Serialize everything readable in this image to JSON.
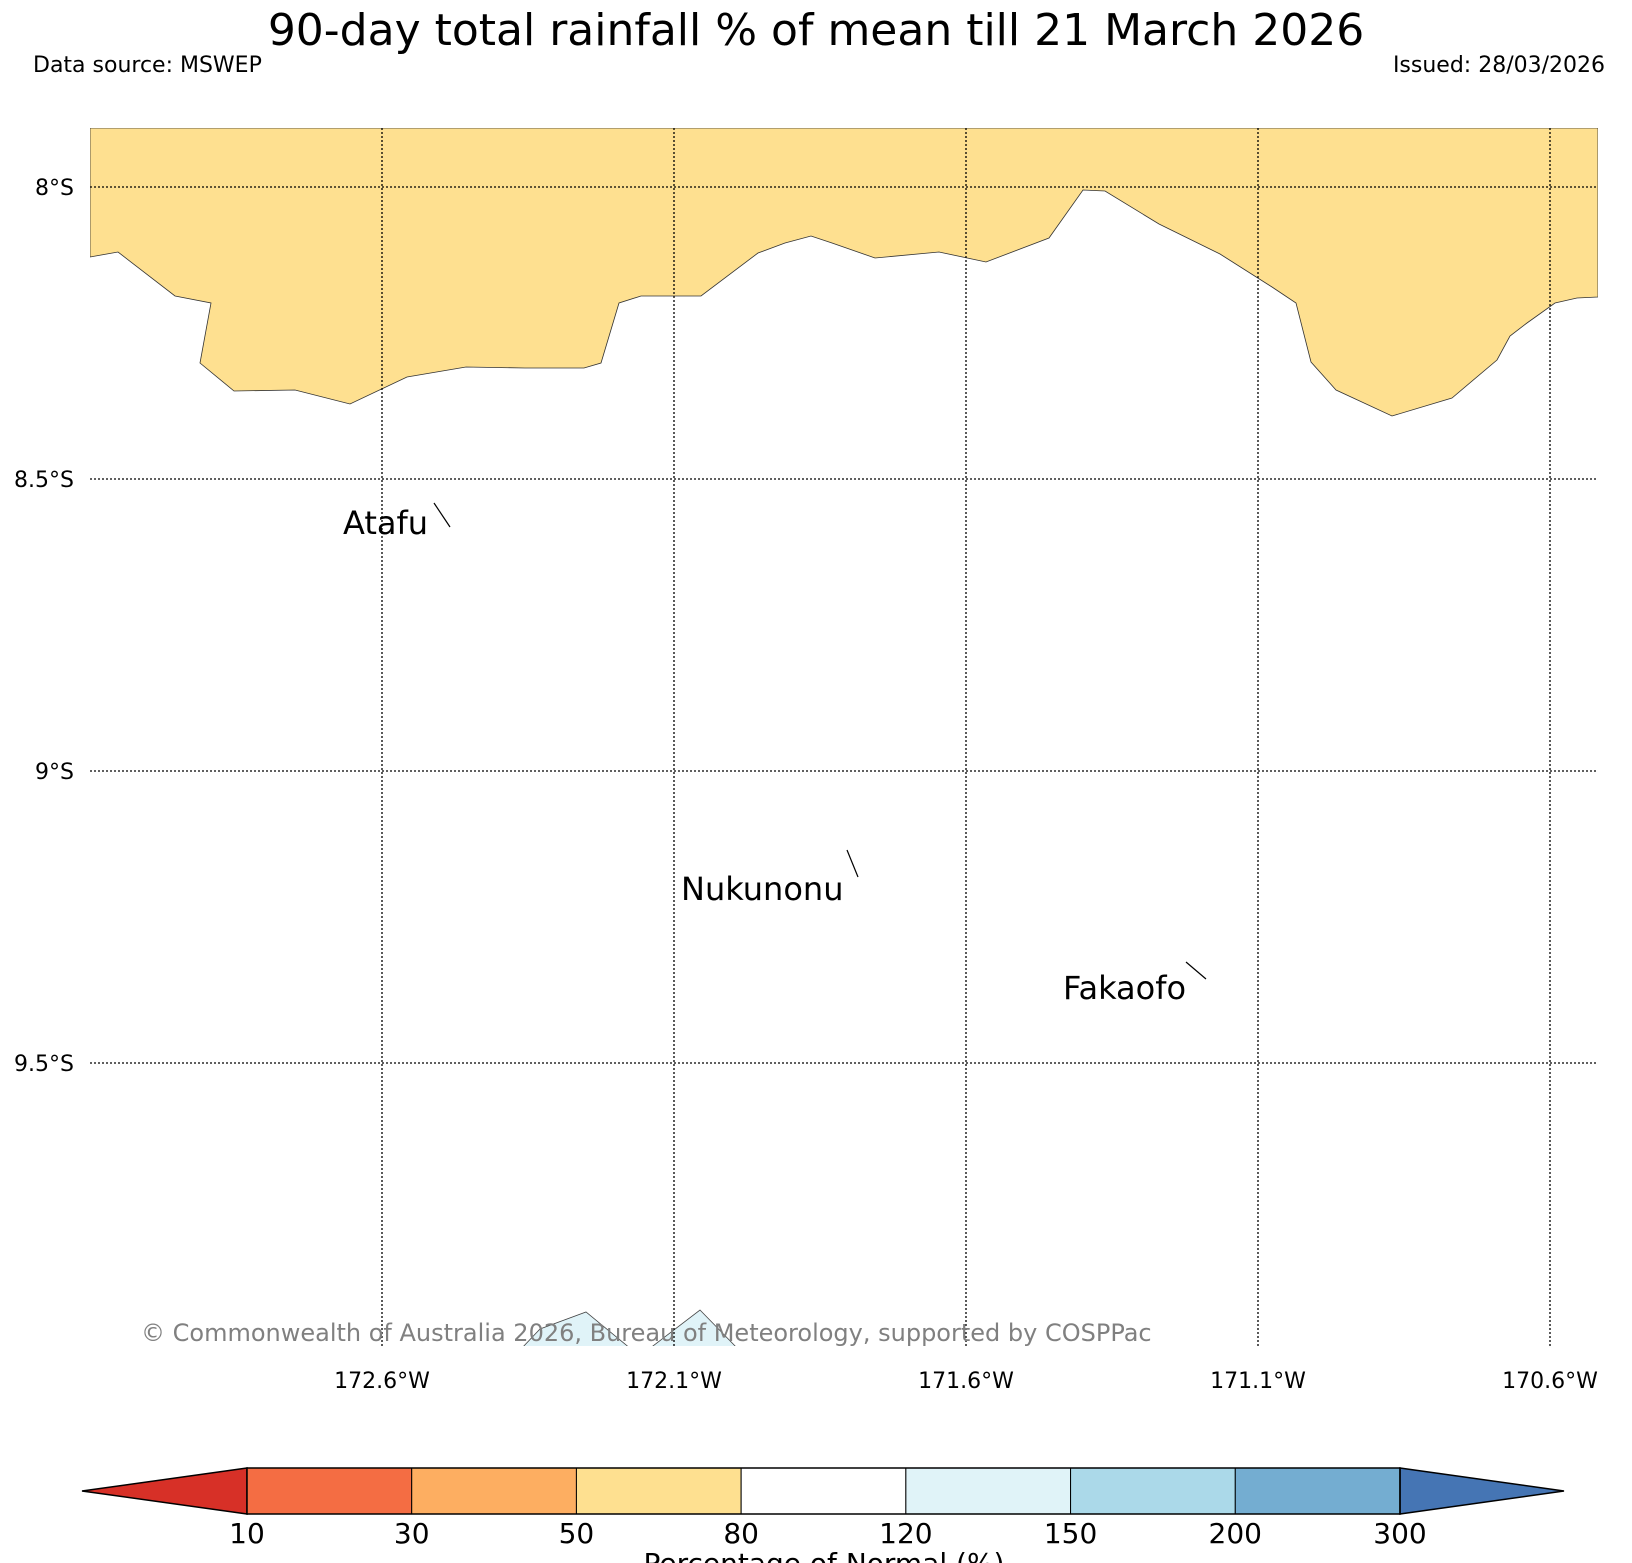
{
  "title": "90-day total rainfall % of mean till 21 March 2026",
  "data_source": "Data source: MSWEP",
  "issued": "Issued: 28/03/2026",
  "latitudes": [
    {
      "value": -8.0,
      "label": "8°S"
    },
    {
      "value": -8.5,
      "label": "8.5°S"
    },
    {
      "value": -9.0,
      "label": "9°S"
    },
    {
      "value": -9.5,
      "label": "9.5°S"
    }
  ],
  "longitudes": [
    {
      "value": -172.6,
      "label": "172.6°W"
    },
    {
      "value": -172.1,
      "label": "172.1°W"
    },
    {
      "value": -171.6,
      "label": "171.6°W"
    },
    {
      "value": -171.1,
      "label": "171.1°W"
    },
    {
      "value": -170.6,
      "label": "170.6°W"
    }
  ],
  "places": [
    {
      "name": "Atafu"
    },
    {
      "name": "Nukunonu"
    },
    {
      "name": "Fakaofo"
    }
  ],
  "copyright": "© Commonwealth of Australia 2026, Bureau of Meteorology, supported by COSPPac",
  "colorbar": {
    "title": "Percentage of Normal (%)",
    "ticks": [
      "10",
      "30",
      "50",
      "80",
      "120",
      "150",
      "200",
      "300"
    ],
    "colors": [
      "#d73027",
      "#f46d43",
      "#fdae61",
      "#fee090",
      "#ffffff",
      "#e0f3f8",
      "#abd9e9",
      "#74add1",
      "#4575b4"
    ]
  },
  "shading": {
    "dry_band_color": "#fee090",
    "wet_patch_color": "#e0f3f8"
  }
}
